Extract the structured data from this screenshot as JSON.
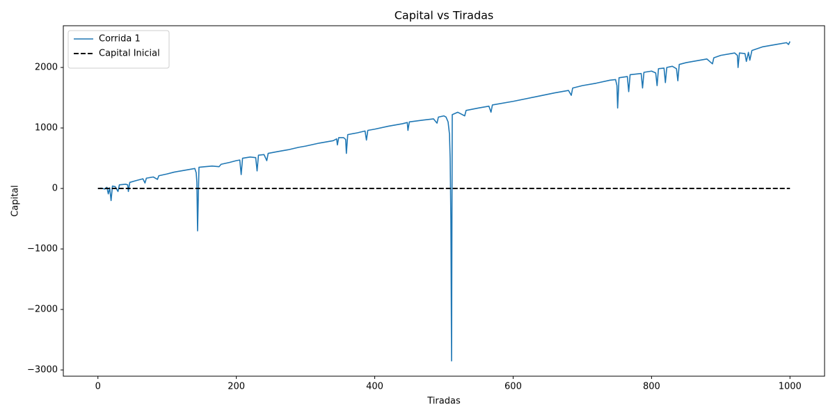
{
  "chart_data": {
    "type": "line",
    "title": "Capital vs Tiradas",
    "x_label": "Tiradas",
    "y_label": "Capital",
    "series": [
      {
        "name": "Corrida 1",
        "color": "#1f77b4",
        "dash": "solid",
        "x": [
          0,
          5,
          10,
          13,
          15,
          17,
          19,
          21,
          25,
          29,
          31,
          40,
          43,
          44,
          46,
          55,
          65,
          68,
          70,
          80,
          86,
          88,
          100,
          110,
          120,
          130,
          140,
          142,
          143,
          144,
          146,
          155,
          165,
          175,
          178,
          190,
          200,
          205,
          207,
          209,
          220,
          228,
          230,
          232,
          240,
          244,
          246,
          260,
          275,
          290,
          300,
          320,
          340,
          345,
          346,
          348,
          355,
          358,
          359,
          361,
          375,
          386,
          388,
          390,
          400,
          420,
          440,
          447,
          448,
          450,
          470,
          485,
          490,
          492,
          500,
          503,
          506,
          508,
          509,
          510,
          511,
          512,
          520,
          530,
          532,
          550,
          565,
          568,
          570,
          600,
          630,
          660,
          680,
          684,
          686,
          700,
          720,
          740,
          748,
          750,
          751,
          753,
          765,
          767,
          769,
          785,
          787,
          789,
          800,
          806,
          808,
          810,
          818,
          820,
          822,
          830,
          836,
          838,
          840,
          850,
          870,
          880,
          888,
          890,
          900,
          920,
          924,
          925,
          927,
          935,
          937,
          940,
          942,
          945,
          960,
          980,
          995,
          998,
          1000
        ],
        "values": [
          0,
          5,
          -10,
          20,
          -90,
          10,
          -200,
          40,
          30,
          -50,
          60,
          70,
          60,
          -50,
          100,
          130,
          160,
          90,
          170,
          190,
          150,
          210,
          240,
          270,
          290,
          310,
          330,
          260,
          100,
          -700,
          350,
          360,
          370,
          360,
          400,
          430,
          460,
          470,
          230,
          500,
          520,
          510,
          290,
          550,
          560,
          460,
          580,
          610,
          640,
          680,
          700,
          750,
          790,
          820,
          720,
          840,
          840,
          810,
          580,
          890,
          920,
          950,
          800,
          960,
          980,
          1030,
          1070,
          1090,
          960,
          1100,
          1130,
          1150,
          1080,
          1180,
          1200,
          1180,
          1100,
          900,
          500,
          -500,
          -2850,
          1220,
          1260,
          1200,
          1290,
          1330,
          1360,
          1260,
          1380,
          1440,
          1510,
          1580,
          1620,
          1540,
          1660,
          1700,
          1740,
          1790,
          1800,
          1700,
          1330,
          1830,
          1850,
          1600,
          1880,
          1900,
          1660,
          1920,
          1940,
          1910,
          1700,
          1980,
          1990,
          1750,
          2000,
          2020,
          1980,
          1780,
          2050,
          2080,
          2120,
          2140,
          2060,
          2160,
          2200,
          2240,
          2200,
          2000,
          2240,
          2230,
          2100,
          2250,
          2120,
          2280,
          2340,
          2380,
          2410,
          2380,
          2430
        ]
      },
      {
        "name": "Capital Inicial",
        "color": "#000000",
        "dash": "dashed",
        "x": [
          0,
          1000
        ],
        "values": [
          0,
          0
        ]
      }
    ],
    "xlim": [
      -50,
      1050
    ],
    "ylim": [
      -3103,
      2690
    ],
    "xticks": [
      0,
      200,
      400,
      600,
      800,
      1000
    ],
    "yticks": [
      {
        "value": -3000,
        "label": "−3000"
      },
      {
        "value": -2000,
        "label": "−2000"
      },
      {
        "value": -1000,
        "label": "−1000"
      },
      0,
      1000,
      2000
    ],
    "legend": "upper left",
    "grid": false
  }
}
